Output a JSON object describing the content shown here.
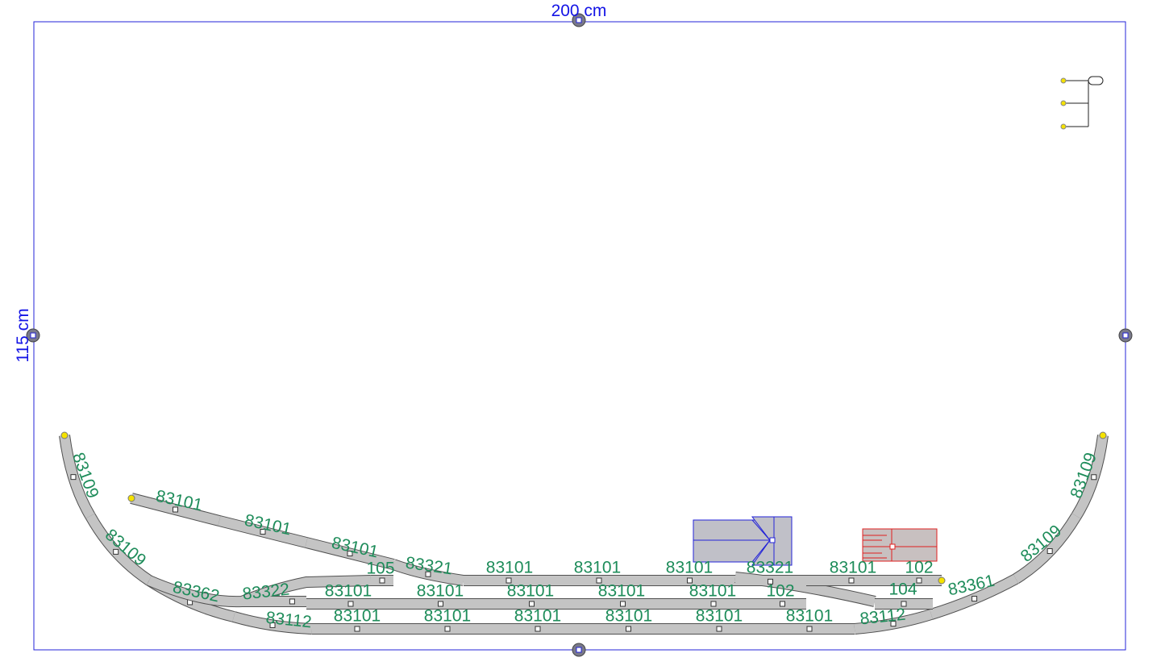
{
  "board": {
    "width_label": "200 cm",
    "height_label": "115 cm"
  },
  "tracks": [
    {
      "label": "83109"
    },
    {
      "label": "83109"
    },
    {
      "label": "83362"
    },
    {
      "label": "83112"
    },
    {
      "label": "83101"
    },
    {
      "label": "83101"
    },
    {
      "label": "83101"
    },
    {
      "label": "83321"
    },
    {
      "label": "83322"
    },
    {
      "label": "105"
    },
    {
      "label": "83101"
    },
    {
      "label": "83101"
    },
    {
      "label": "83101"
    },
    {
      "label": "83321"
    },
    {
      "label": "83101"
    },
    {
      "label": "102"
    },
    {
      "label": "83101"
    },
    {
      "label": "83101"
    },
    {
      "label": "83101"
    },
    {
      "label": "83101"
    },
    {
      "label": "83101"
    },
    {
      "label": "102"
    },
    {
      "label": "83101"
    },
    {
      "label": "83101"
    },
    {
      "label": "83101"
    },
    {
      "label": "83101"
    },
    {
      "label": "83101"
    },
    {
      "label": "83101"
    },
    {
      "label": "83109"
    },
    {
      "label": "83109"
    },
    {
      "label": "83361"
    },
    {
      "label": "83112"
    },
    {
      "label": "104"
    }
  ]
}
